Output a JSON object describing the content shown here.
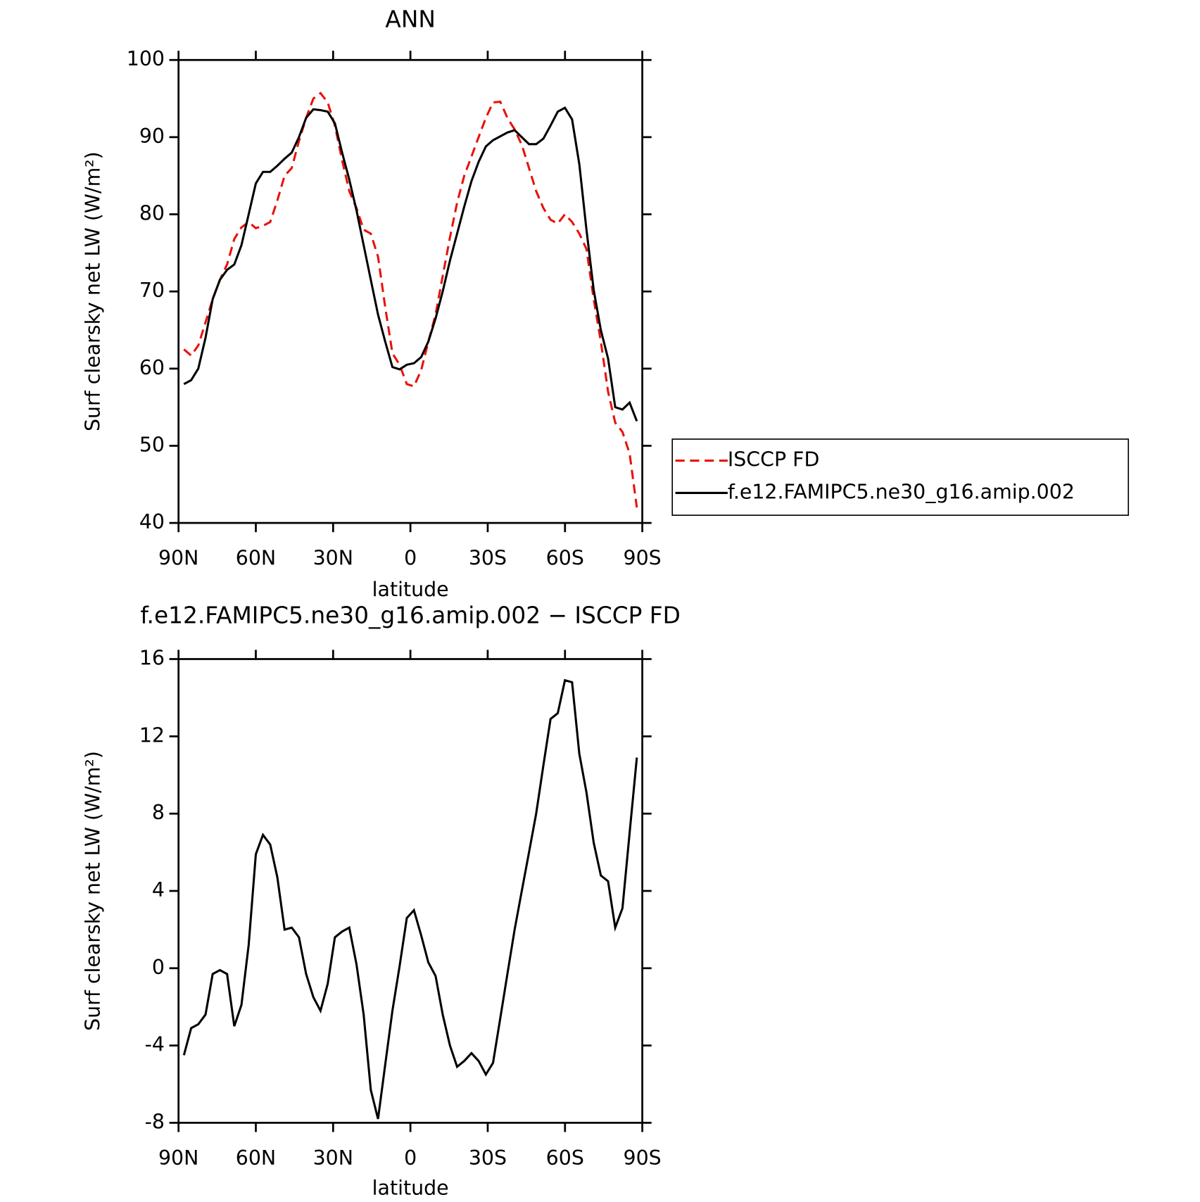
{
  "chart_data": [
    {
      "type": "line",
      "title": "ANN",
      "xlabel": "latitude",
      "ylabel": "Surf clearsky net LW (W/m²)",
      "x": [
        87.9,
        85.11,
        82.32,
        79.53,
        76.74,
        73.95,
        71.16,
        68.37,
        65.58,
        62.79,
        60,
        57.21,
        54.42,
        51.63,
        48.84,
        46.05,
        43.26,
        40.47,
        37.68,
        34.89,
        32.1,
        29.31,
        26.52,
        23.73,
        20.94,
        18.15,
        15.36,
        12.57,
        9.78,
        6.99,
        4.2,
        1.41,
        -1.38,
        -4.17,
        -6.96,
        -9.75,
        -12.54,
        -15.33,
        -18.12,
        -20.91,
        -23.7,
        -26.49,
        -29.28,
        -32.07,
        -34.86,
        -37.65,
        -40.44,
        -43.23,
        -46.02,
        -48.81,
        -51.6,
        -54.39,
        -57.18,
        -59.97,
        -62.76,
        -65.55,
        -68.34,
        -71.13,
        -73.92,
        -76.71,
        -79.5,
        -82.29,
        -85.08,
        -87.87
      ],
      "series": [
        {
          "name": "ISCCP FD",
          "color": "#e8120c",
          "dashed": true,
          "values": [
            62.5,
            61.7,
            63,
            66,
            69,
            71.5,
            73.5,
            76.8,
            78.3,
            79,
            78.2,
            78.5,
            79,
            81.8,
            85,
            86,
            89.5,
            92.5,
            95,
            95.7,
            94.5,
            91.5,
            87,
            83,
            80.8,
            78,
            77.5,
            74.5,
            68,
            62,
            60.5,
            58,
            57.7,
            59.8,
            63.5,
            67,
            72,
            77,
            81.5,
            85,
            87.5,
            90,
            92.5,
            94.5,
            94.6,
            92.5,
            91,
            89,
            86,
            83,
            80.8,
            79.3,
            78.8,
            80,
            79,
            77.5,
            75.5,
            69,
            63.5,
            57,
            53,
            51.8,
            49,
            42
          ]
        },
        {
          "name": "f.e12.FAMIPC5.ne30_g16.amip.002",
          "color": "#000000",
          "dashed": false,
          "values": [
            58,
            58.5,
            60,
            64,
            69,
            71.5,
            72.8,
            73.5,
            76,
            80,
            84,
            85.5,
            85.5,
            86.3,
            87.2,
            88,
            90,
            92.5,
            93.6,
            93.5,
            93.3,
            91.8,
            88,
            84.5,
            80.5,
            76,
            71.5,
            67,
            63.5,
            60.2,
            59.9,
            60.5,
            60.7,
            61.5,
            63.5,
            66.5,
            70,
            74,
            77.5,
            81,
            84.3,
            86.8,
            88.8,
            89.6,
            90.1,
            90.6,
            90.9,
            90,
            89.1,
            89.1,
            89.8,
            91.5,
            93.3,
            93.8,
            92.3,
            86.5,
            78,
            70.2,
            65,
            61.3,
            55,
            54.7,
            55.6,
            53.2
          ]
        }
      ],
      "xlim": [
        90,
        -90
      ],
      "xticks": [
        {
          "value": 90,
          "label": "90N"
        },
        {
          "value": 60,
          "label": "60N"
        },
        {
          "value": 30,
          "label": "30N"
        },
        0,
        {
          "value": -30,
          "label": "30S"
        },
        {
          "value": -60,
          "label": "60S"
        },
        {
          "value": -90,
          "label": "90S"
        }
      ],
      "ylim": [
        40,
        100
      ],
      "yticks": [
        40,
        50,
        60,
        70,
        80,
        90,
        100
      ],
      "legend": "right"
    },
    {
      "type": "line",
      "title": "f.e12.FAMIPC5.ne30_g16.amip.002 − ISCCP FD",
      "xlabel": "latitude",
      "ylabel": "Surf clearsky net LW (W/m²)",
      "x": [
        87.9,
        85.11,
        82.32,
        79.53,
        76.74,
        73.95,
        71.16,
        68.37,
        65.58,
        62.79,
        60,
        57.21,
        54.42,
        51.63,
        48.84,
        46.05,
        43.26,
        40.47,
        37.68,
        34.89,
        32.1,
        29.31,
        26.52,
        23.73,
        20.94,
        18.15,
        15.36,
        12.57,
        9.78,
        6.99,
        4.2,
        1.41,
        -1.38,
        -4.17,
        -6.96,
        -9.75,
        -12.54,
        -15.33,
        -18.12,
        -20.91,
        -23.7,
        -26.49,
        -29.28,
        -32.07,
        -34.86,
        -37.65,
        -40.44,
        -43.23,
        -46.02,
        -48.81,
        -51.6,
        -54.39,
        -57.18,
        -59.97,
        -62.76,
        -65.55,
        -68.34,
        -71.13,
        -73.92,
        -76.71,
        -79.5,
        -82.29,
        -85.08,
        -87.87
      ],
      "series": [
        {
          "color": "#000000",
          "dashed": false,
          "values": [
            -4.5,
            -3.1,
            -2.9,
            -2.4,
            -0.3,
            -0.1,
            -0.3,
            -3.0,
            -1.9,
            1.2,
            5.9,
            6.9,
            6.4,
            4.7,
            2.0,
            2.1,
            1.6,
            -0.3,
            -1.5,
            -2.2,
            -0.8,
            1.6,
            1.9,
            2.1,
            0.2,
            -2.4,
            -6.3,
            -7.8,
            -5.0,
            -2.2,
            0.1,
            2.6,
            3.0,
            1.7,
            0.3,
            -0.4,
            -2.4,
            -4.0,
            -5.1,
            -4.8,
            -4.4,
            -4.8,
            -5.5,
            -4.9,
            -2.6,
            -0.3,
            2.0,
            4.0,
            6.0,
            8.0,
            10.5,
            12.9,
            13.2,
            14.9,
            14.8,
            11.1,
            9.1,
            6.5,
            4.8,
            4.5,
            2.1,
            3.1,
            7.0,
            10.9
          ]
        }
      ],
      "xlim": [
        90,
        -90
      ],
      "xticks": [
        {
          "value": 90,
          "label": "90N"
        },
        {
          "value": 60,
          "label": "60N"
        },
        {
          "value": 30,
          "label": "30N"
        },
        0,
        {
          "value": -30,
          "label": "30S"
        },
        {
          "value": -60,
          "label": "60S"
        },
        {
          "value": -90,
          "label": "90S"
        }
      ],
      "ylim": [
        -8,
        16
      ],
      "yticks": [
        -8,
        -4,
        0,
        4,
        8,
        12,
        16
      ]
    }
  ]
}
